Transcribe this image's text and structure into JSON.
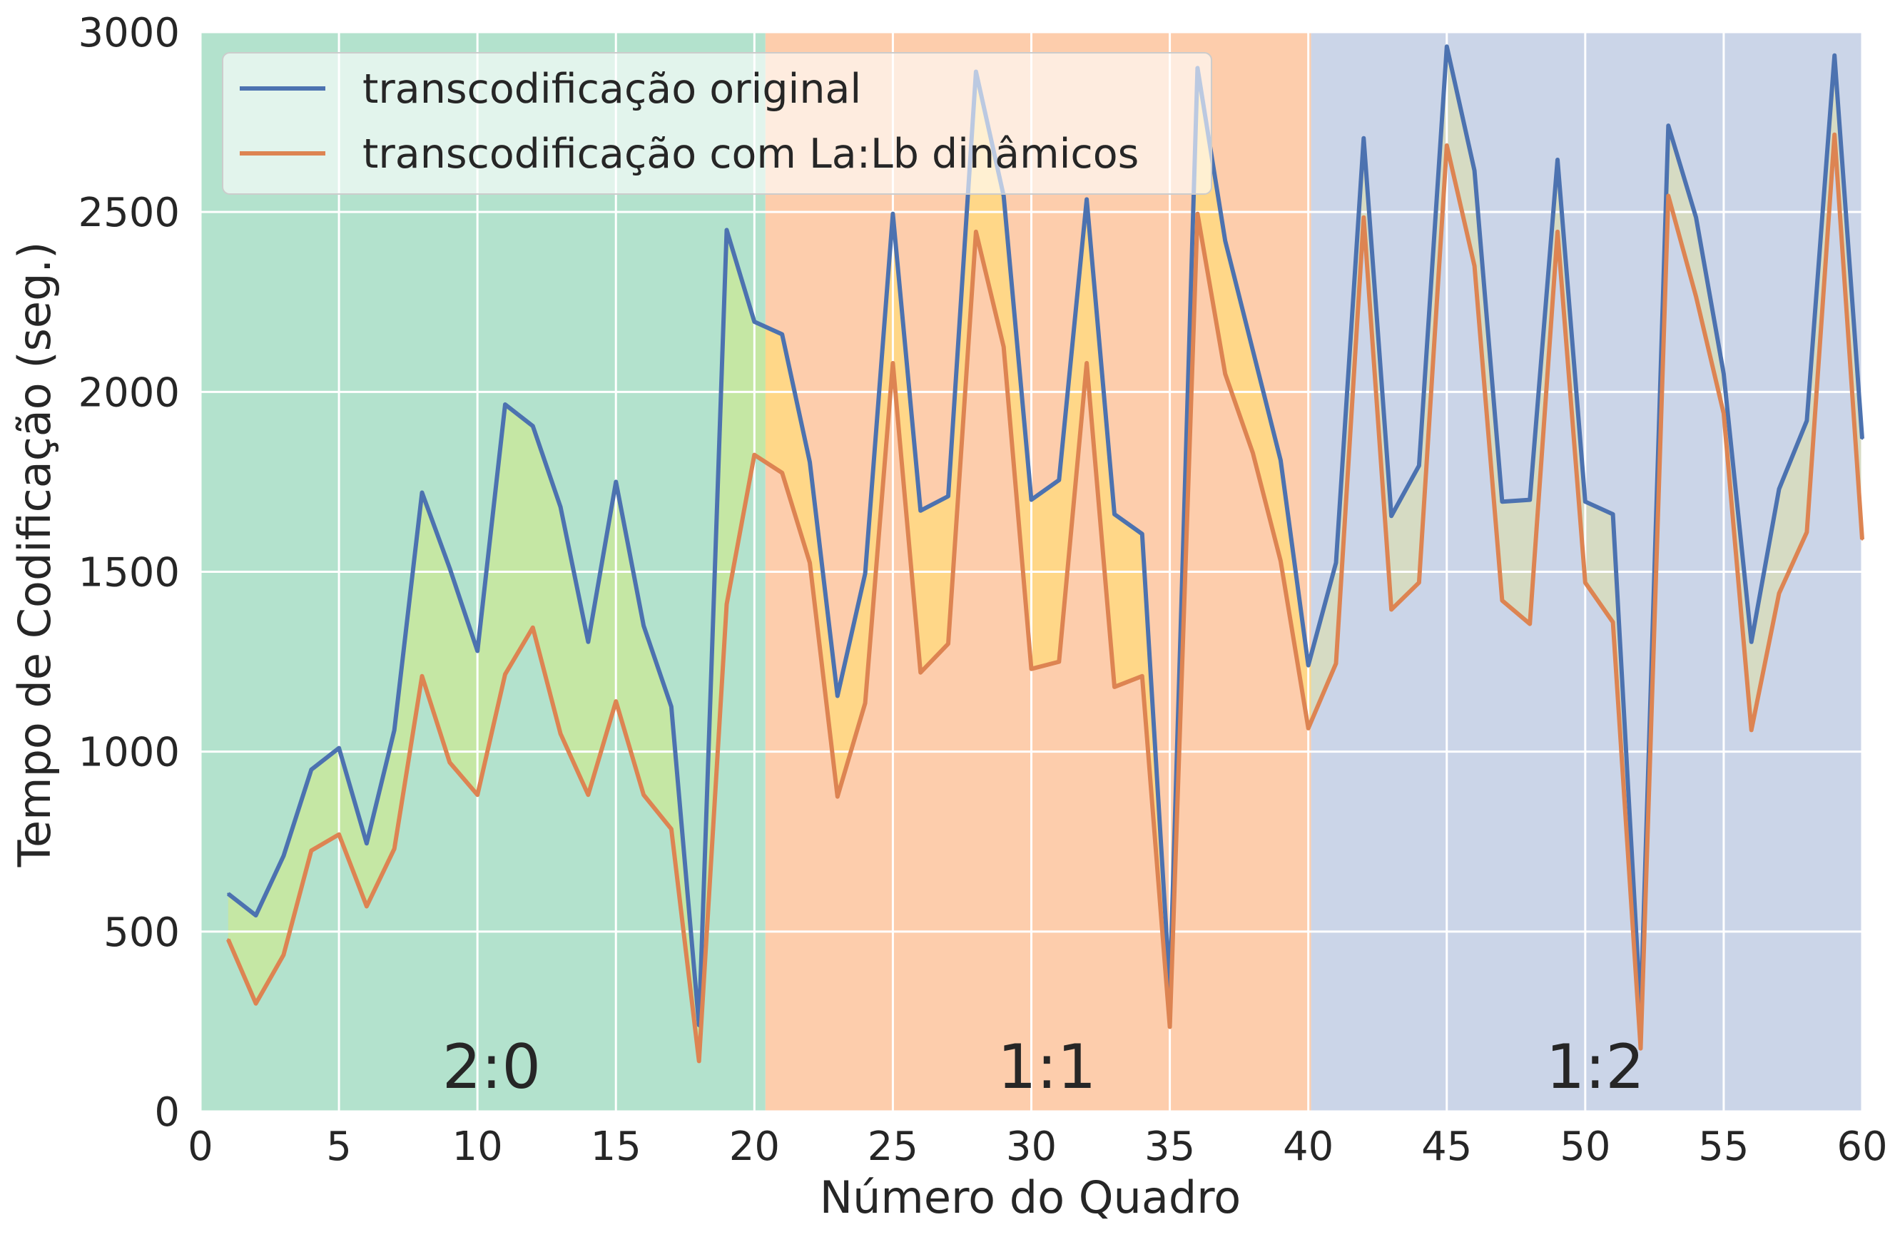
{
  "chart_data": {
    "type": "line",
    "xlabel": "Número do Quadro",
    "ylabel": "Tempo de Codificação (seg.)",
    "xlim": [
      0,
      60
    ],
    "ylim": [
      0,
      3000
    ],
    "xticks": [
      "0",
      "5",
      "10",
      "15",
      "20",
      "25",
      "30",
      "35",
      "40",
      "45",
      "50",
      "55",
      "60"
    ],
    "yticks": [
      "0",
      "500",
      "1000",
      "1500",
      "2000",
      "2500",
      "3000"
    ],
    "grid": true,
    "legend_position": "top-left",
    "x": [
      1,
      2,
      3,
      4,
      5,
      6,
      7,
      8,
      9,
      10,
      11,
      12,
      13,
      14,
      15,
      16,
      17,
      18,
      19,
      20,
      21,
      22,
      23,
      24,
      25,
      26,
      27,
      28,
      29,
      30,
      31,
      32,
      33,
      34,
      35,
      36,
      37,
      38,
      39,
      40,
      41,
      42,
      43,
      44,
      45,
      46,
      47,
      48,
      49,
      50,
      51,
      52,
      53,
      54,
      55,
      56,
      57,
      58,
      59,
      60
    ],
    "series": [
      {
        "name": "transcodificação original",
        "color": "#4c72b0",
        "values": [
          605,
          545,
          710,
          950,
          1010,
          745,
          1060,
          1720,
          1510,
          1280,
          1965,
          1905,
          1680,
          1305,
          1750,
          1350,
          1125,
          240,
          2450,
          2195,
          2160,
          1805,
          1155,
          1495,
          2495,
          1670,
          1710,
          2890,
          2545,
          1700,
          1755,
          2535,
          1660,
          1605,
          340,
          2900,
          2420,
          2115,
          1810,
          1240,
          1525,
          2705,
          1655,
          1795,
          2960,
          2615,
          1695,
          1700,
          2645,
          1695,
          1660,
          275,
          2740,
          2485,
          2050,
          1305,
          1730,
          1920,
          2935,
          1870
        ]
      },
      {
        "name": "transcodificação com La:Lb dinâmicos",
        "color": "#dd8452",
        "values": [
          478,
          300,
          435,
          725,
          770,
          570,
          730,
          1210,
          970,
          880,
          1215,
          1345,
          1050,
          880,
          1140,
          880,
          785,
          140,
          1410,
          1825,
          1775,
          1525,
          875,
          1135,
          2080,
          1220,
          1300,
          2445,
          2125,
          1230,
          1250,
          2080,
          1180,
          1210,
          235,
          2495,
          2050,
          1830,
          1530,
          1065,
          1245,
          2485,
          1395,
          1470,
          2685,
          2350,
          1420,
          1355,
          2445,
          1470,
          1360,
          175,
          2545,
          2265,
          1940,
          1060,
          1440,
          1610,
          2715,
          1590
        ]
      }
    ],
    "regions": [
      {
        "label": "2:0",
        "x_start": 0,
        "x_end": 20.4,
        "color": "#b3e2cd"
      },
      {
        "label": "1:1",
        "x_start": 20.4,
        "x_end": 40.1,
        "color": "#fdcdac"
      },
      {
        "label": "1:2",
        "x_start": 40.1,
        "x_end": 60,
        "color": "#cbd5e8"
      }
    ],
    "fill_between_colors": {
      "2:0": "#c7e8a0",
      "1:1": "#ffd884",
      "1:2": "#d7dcbf"
    }
  }
}
